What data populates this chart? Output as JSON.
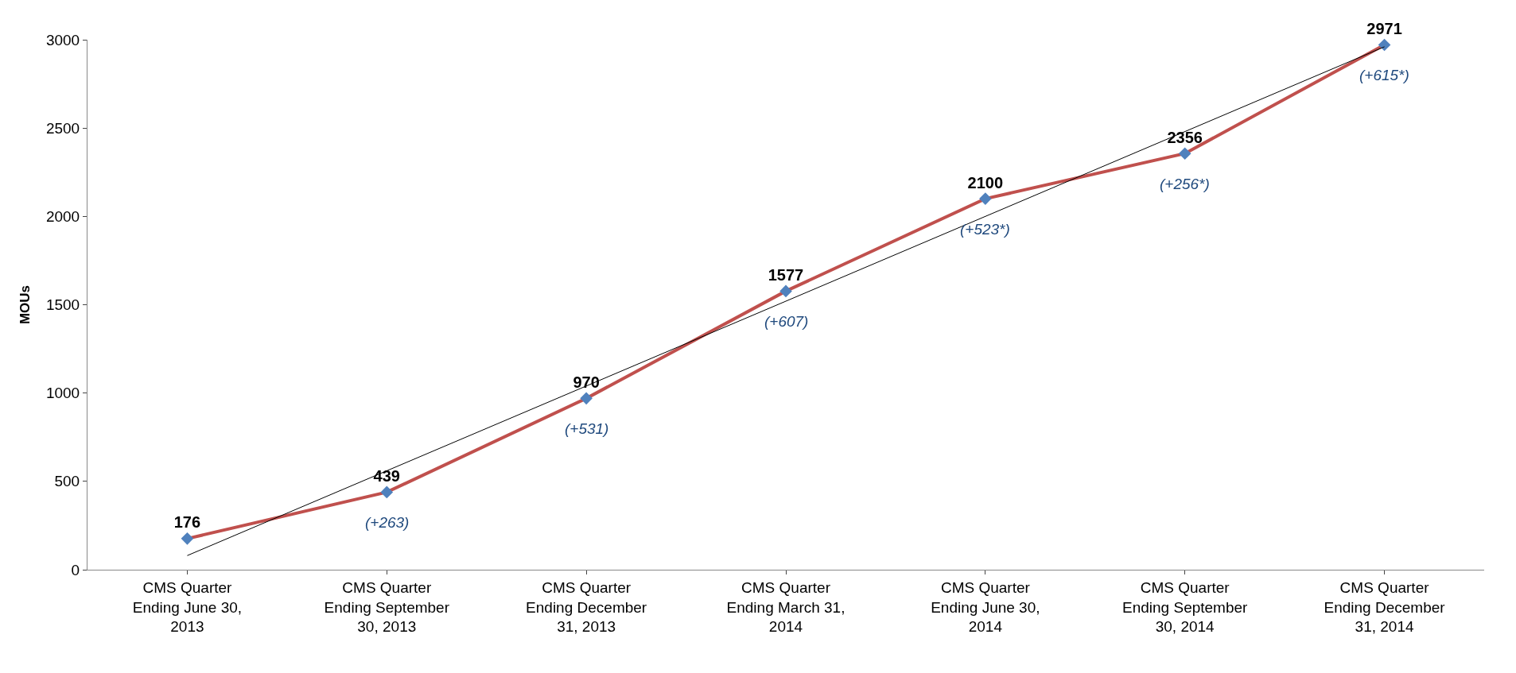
{
  "chart_data": {
    "type": "line",
    "ylabel": "MOUs",
    "categories": [
      "CMS Quarter Ending June 30, 2013",
      "CMS Quarter Ending September 30, 2013",
      "CMS Quarter Ending December 31, 2013",
      "CMS Quarter Ending March 31, 2014",
      "CMS Quarter Ending June 30, 2014",
      "CMS Quarter Ending September 30, 2014",
      "CMS Quarter Ending December 31, 2014"
    ],
    "series": [
      {
        "color": "#c0504d",
        "colors": [
          "#4f81bd",
          "#4f81bd",
          "#4f81bd",
          "#4f81bd",
          "#4f81bd",
          "#4f81bd",
          "#4f81bd"
        ],
        "values": [
          176,
          439,
          970,
          1577,
          2100,
          2356,
          2971
        ],
        "value_labels": [
          "176",
          "439",
          "970",
          "1577",
          "2100",
          "2356",
          "2971"
        ],
        "marker": "diamond"
      },
      {
        "type": "line",
        "color": "#000000",
        "x": [
          "CMS Quarter Ending June 30, 2013",
          "CMS Quarter Ending December 31, 2014"
        ],
        "values": [
          80,
          2960
        ],
        "marker": "none"
      }
    ],
    "annotations": [
      {
        "text": "(+263)",
        "x": "CMS Quarter Ending September 30, 2013",
        "y": 439
      },
      {
        "text": "(+531)",
        "x": "CMS Quarter Ending December 31, 2013",
        "y": 970
      },
      {
        "text": "(+607)",
        "x": "CMS Quarter Ending March 31, 2014",
        "y": 1577
      },
      {
        "text": "(+523*)",
        "x": "CMS Quarter Ending June 30, 2014",
        "y": 2100
      },
      {
        "text": "(+256*)",
        "x": "CMS Quarter Ending September 30, 2014",
        "y": 2356
      },
      {
        "text": "(+615*)",
        "x": "CMS Quarter Ending December 31, 2014",
        "y": 2971
      }
    ],
    "ylim": [
      0,
      3000
    ],
    "yticks": [
      0,
      500,
      1000,
      1500,
      2000,
      2500,
      3000
    ]
  }
}
